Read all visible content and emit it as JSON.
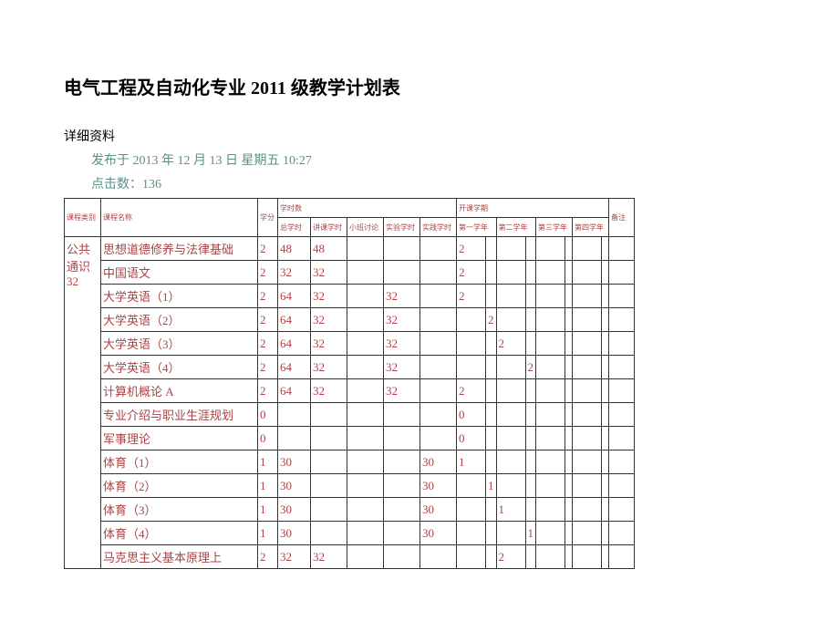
{
  "title": "电气工程及自动化专业 2011 级教学计划表",
  "meta": {
    "details_label": "详细资料",
    "publish_line": "发布于 2013 年 12 月 13 日 星期五 10:27",
    "hits_line": "点击数：136"
  },
  "headers": {
    "category": "课程类别",
    "course": "课程名称",
    "credit": "学分",
    "hours_group": "学时数",
    "total_hours": "总学时",
    "lecture": "讲课学时",
    "discussion": "小班讨论",
    "lab": "实验学时",
    "practice": "实践学时",
    "semester_group": "开课学期",
    "sem1": "第一学年",
    "sem2": "第二学年",
    "sem3": "第三学年",
    "sem4": "第四学年",
    "notes": "备注"
  },
  "category_label": "公共通识 32",
  "rows": [
    {
      "course": "思想道德修养与法律基础",
      "credit": "2",
      "total": "48",
      "lect": "48",
      "disc": "",
      "lab": "",
      "prac": "",
      "s": [
        "2",
        "",
        "",
        "",
        "",
        "",
        "",
        ""
      ]
    },
    {
      "course": "中国语文",
      "credit": "2",
      "total": "32",
      "lect": "32",
      "disc": "",
      "lab": "",
      "prac": "",
      "s": [
        "2",
        "",
        "",
        "",
        "",
        "",
        "",
        ""
      ]
    },
    {
      "course": "大学英语（1）",
      "credit": "2",
      "total": "64",
      "lect": "32",
      "disc": "",
      "lab": "32",
      "prac": "",
      "s": [
        "2",
        "",
        "",
        "",
        "",
        "",
        "",
        ""
      ]
    },
    {
      "course": "大学英语（2）",
      "credit": "2",
      "total": "64",
      "lect": "32",
      "disc": "",
      "lab": "32",
      "prac": "",
      "s": [
        "",
        "2",
        "",
        "",
        "",
        "",
        "",
        ""
      ]
    },
    {
      "course": "大学英语（3）",
      "credit": "2",
      "total": "64",
      "lect": "32",
      "disc": "",
      "lab": "32",
      "prac": "",
      "s": [
        "",
        "",
        "2",
        "",
        "",
        "",
        "",
        ""
      ]
    },
    {
      "course": "大学英语（4）",
      "credit": "2",
      "total": "64",
      "lect": "32",
      "disc": "",
      "lab": "32",
      "prac": "",
      "s": [
        "",
        "",
        "",
        "2",
        "",
        "",
        "",
        ""
      ]
    },
    {
      "course": "计算机概论 A",
      "credit": "2",
      "total": "64",
      "lect": "32",
      "disc": "",
      "lab": "32",
      "prac": "",
      "s": [
        "2",
        "",
        "",
        "",
        "",
        "",
        "",
        ""
      ]
    },
    {
      "course": "专业介绍与职业生涯规划",
      "credit": "0",
      "total": "",
      "lect": "",
      "disc": "",
      "lab": "",
      "prac": "",
      "s": [
        "0",
        "",
        "",
        "",
        "",
        "",
        "",
        ""
      ]
    },
    {
      "course": "军事理论",
      "credit": "0",
      "total": "",
      "lect": "",
      "disc": "",
      "lab": "",
      "prac": "",
      "s": [
        "0",
        "",
        "",
        "",
        "",
        "",
        "",
        ""
      ]
    },
    {
      "course": "体育（1）",
      "credit": "1",
      "total": "30",
      "lect": "",
      "disc": "",
      "lab": "",
      "prac": "30",
      "s": [
        "1",
        "",
        "",
        "",
        "",
        "",
        "",
        ""
      ]
    },
    {
      "course": "体育（2）",
      "credit": "1",
      "total": "30",
      "lect": "",
      "disc": "",
      "lab": "",
      "prac": "30",
      "s": [
        "",
        "1",
        "",
        "",
        "",
        "",
        "",
        ""
      ]
    },
    {
      "course": "体育（3）",
      "credit": "1",
      "total": "30",
      "lect": "",
      "disc": "",
      "lab": "",
      "prac": "30",
      "s": [
        "",
        "",
        "1",
        "",
        "",
        "",
        "",
        ""
      ]
    },
    {
      "course": "体育（4）",
      "credit": "1",
      "total": "30",
      "lect": "",
      "disc": "",
      "lab": "",
      "prac": "30",
      "s": [
        "",
        "",
        "",
        "1",
        "",
        "",
        "",
        ""
      ]
    },
    {
      "course": "马克思主义基本原理上",
      "credit": "2",
      "total": "32",
      "lect": "32",
      "disc": "",
      "lab": "",
      "prac": "",
      "s": [
        "",
        "",
        "2",
        "",
        "",
        "",
        "",
        ""
      ]
    }
  ]
}
